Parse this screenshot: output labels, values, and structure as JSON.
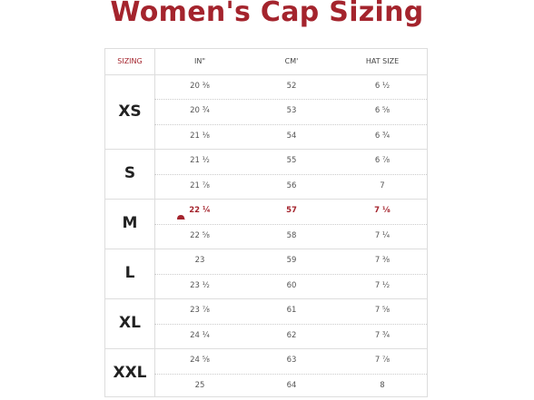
{
  "header": {
    "title": "Women's Cap Sizing"
  },
  "table": {
    "columns": [
      "SIZING",
      "IN\"",
      "CM'",
      "HAT SIZE"
    ],
    "groups": [
      {
        "label": "XS",
        "rows": [
          {
            "cells": [
              "20 ⅜",
              "52",
              "6 ½"
            ]
          },
          {
            "cells": [
              "20 ¾",
              "53",
              "6 ⅝"
            ]
          },
          {
            "cells": [
              "21 ⅛",
              "54",
              "6 ¾"
            ]
          }
        ]
      },
      {
        "label": "S",
        "rows": [
          {
            "cells": [
              "21 ½",
              "55",
              "6 ⅞"
            ]
          },
          {
            "cells": [
              "21 ⅞",
              "56",
              "7"
            ]
          }
        ]
      },
      {
        "label": "M",
        "rows": [
          {
            "cells": [
              "22 ¼",
              "57",
              "7 ⅛"
            ],
            "highlight": true
          },
          {
            "cells": [
              "22 ⅝",
              "58",
              "7 ¼"
            ]
          }
        ]
      },
      {
        "label": "L",
        "rows": [
          {
            "cells": [
              "23",
              "59",
              "7 ⅜"
            ]
          },
          {
            "cells": [
              "23 ½",
              "60",
              "7 ½"
            ]
          }
        ]
      },
      {
        "label": "XL",
        "rows": [
          {
            "cells": [
              "23 ⅞",
              "61",
              "7 ⅝"
            ]
          },
          {
            "cells": [
              "24 ¼",
              "62",
              "7 ¾"
            ]
          }
        ]
      },
      {
        "label": "XXL",
        "rows": [
          {
            "cells": [
              "24 ⅝",
              "63",
              "7 ⅞"
            ]
          },
          {
            "cells": [
              "25",
              "64",
              "8"
            ]
          }
        ]
      }
    ]
  }
}
